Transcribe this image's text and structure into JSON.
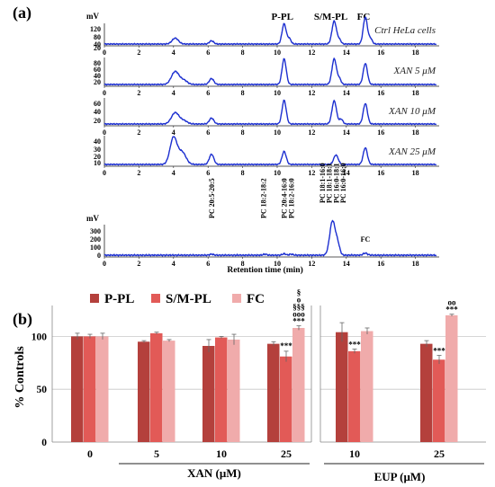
{
  "panel_a": {
    "label": "(a)",
    "x_axis_label": "Retention time (min)",
    "x_ticks": [
      "0",
      "2",
      "4",
      "6",
      "8",
      "10",
      "12",
      "14",
      "16",
      "18"
    ],
    "y_unit": "mV",
    "peak_names": {
      "ppl": "P-PL",
      "smpl": "S/M-PL",
      "fc": "FC"
    },
    "traces": [
      {
        "label": "Ctrl HeLa cells",
        "y_ticks": [
          "120",
          "80",
          "40",
          "20"
        ]
      },
      {
        "label": "XAN 5 μM",
        "y_ticks": [
          "80",
          "60",
          "40",
          "20"
        ]
      },
      {
        "label": "XAN 10 μM",
        "y_ticks": [
          "60",
          "40",
          "20"
        ]
      },
      {
        "label": "XAN 25 μM",
        "y_ticks": [
          "40",
          "30",
          "20",
          "10"
        ]
      }
    ],
    "standards": {
      "y_ticks": [
        "300",
        "200",
        "100",
        "0"
      ],
      "peak_labels": [
        "PC 20:5-20:5",
        "PC 18:2-18:2",
        "PC 20:4-16:0",
        "PC 18:2-16:0",
        "PC 18:1-16:0",
        "PC 18:1-18:1",
        "PC 16:0-18:1",
        "PC 16:0-16:0"
      ],
      "fc_label": "FC"
    }
  },
  "panel_b": {
    "label": "(b)",
    "y_axis_label": "% Controls",
    "y_ticks": [
      "0",
      "50",
      "100"
    ],
    "legend": [
      "P-PL",
      "S/M-PL",
      "FC"
    ],
    "group_xan_label": "XAN (μM)",
    "group_eup_label": "EUP (μM)",
    "dose_labels": [
      "0",
      "5",
      "10",
      "25",
      "10",
      "25"
    ]
  },
  "chart_data": {
    "type": "bar",
    "categories": [
      "0",
      "5",
      "10",
      "25",
      "10",
      "25"
    ],
    "groups": [
      "XAN (μM)",
      "XAN (μM)",
      "XAN (μM)",
      "XAN (μM)",
      "EUP (μM)",
      "EUP (μM)"
    ],
    "series": [
      {
        "name": "P-PL",
        "values": [
          100,
          95,
          91,
          93,
          104,
          93
        ],
        "errors": [
          3,
          1,
          6,
          2,
          9,
          3
        ],
        "color": "#b4403c"
      },
      {
        "name": "S/M-PL",
        "values": [
          100,
          103,
          99,
          81,
          86,
          78
        ],
        "errors": [
          2,
          1,
          1,
          5,
          2,
          4
        ],
        "color": "#e25a57"
      },
      {
        "name": "FC",
        "values": [
          100,
          96,
          97,
          108,
          105,
          120
        ],
        "errors": [
          3,
          1,
          5,
          2,
          3,
          1
        ],
        "color": "#f0abab"
      }
    ],
    "annotations": [
      {
        "category_index": 3,
        "series": "S/M-PL",
        "text": "***"
      },
      {
        "category_index": 3,
        "series": "FC",
        "text": [
          "§§§",
          "ooo",
          "***"
        ]
      },
      {
        "category_index": 3,
        "series": "FC",
        "text": [
          "§",
          "o"
        ]
      },
      {
        "category_index": 4,
        "series": "S/M-PL",
        "text": "***"
      },
      {
        "category_index": 5,
        "series": "S/M-PL",
        "text": "***"
      },
      {
        "category_index": 5,
        "series": "FC",
        "text": [
          "oo",
          "***"
        ]
      }
    ],
    "ylabel": "% Controls",
    "ylim": [
      0,
      125
    ],
    "grid": true,
    "legend_position": "top-left"
  }
}
